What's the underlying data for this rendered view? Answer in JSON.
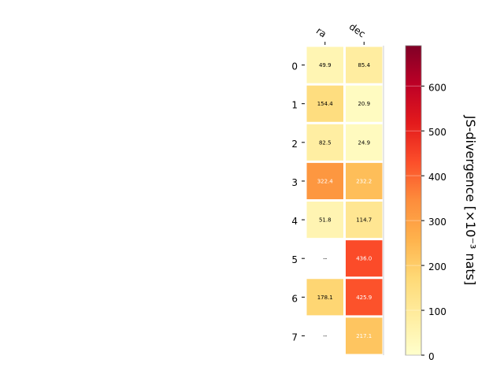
{
  "chart_data": {
    "type": "heatmap",
    "columns": [
      "ra",
      "dec"
    ],
    "rows": [
      "0",
      "1",
      "2",
      "3",
      "4",
      "5",
      "6",
      "7"
    ],
    "values": [
      [
        49.9,
        85.4
      ],
      [
        154.4,
        20.9
      ],
      [
        82.5,
        24.9
      ],
      [
        322.4,
        232.2
      ],
      [
        51.8,
        114.7
      ],
      [
        null,
        436.0
      ],
      [
        178.1,
        425.9
      ],
      [
        null,
        217.1
      ]
    ],
    "cell_labels": [
      [
        "49.9",
        "85.4"
      ],
      [
        "154.4",
        "20.9"
      ],
      [
        "82.5",
        "24.9"
      ],
      [
        "322.4",
        "232.2"
      ],
      [
        "51.8",
        "114.7"
      ],
      [
        "--",
        "436.0"
      ],
      [
        "178.1",
        "425.9"
      ],
      [
        "--",
        "217.1"
      ]
    ],
    "colormap": "YlOrRd",
    "colorbar": {
      "label": "JS-divergence [×10⁻³ nats]",
      "range": [
        0,
        690
      ],
      "ticks": [
        0,
        100,
        200,
        300,
        400,
        500,
        600
      ]
    }
  }
}
